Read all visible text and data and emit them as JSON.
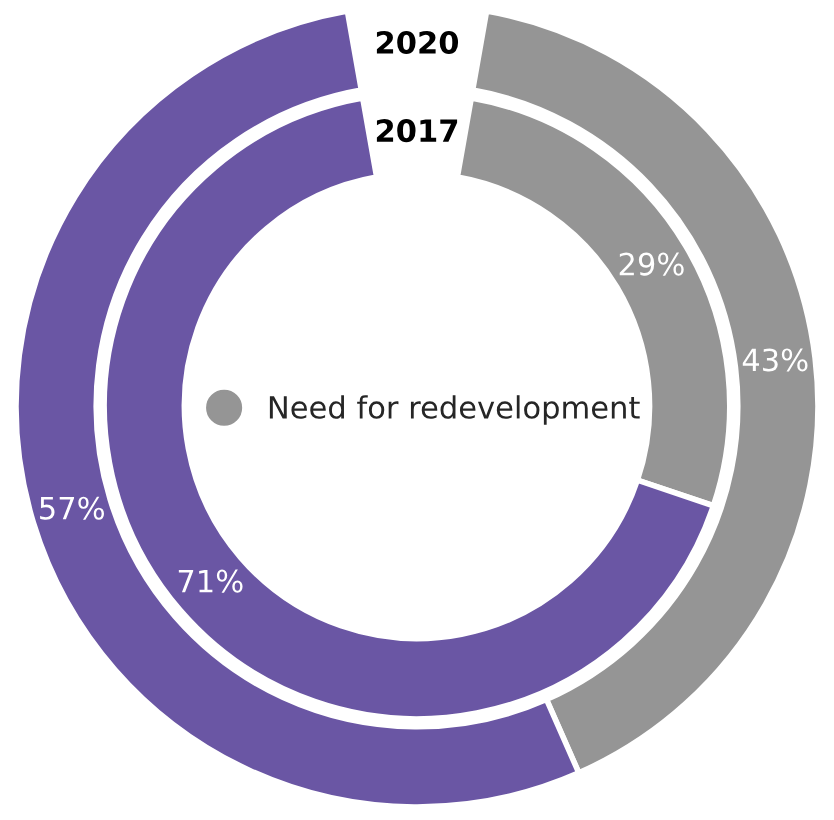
{
  "chart_data": {
    "type": "donut",
    "categories": [
      "Need for redevelopment",
      null
    ],
    "colors": [
      "#959595",
      "#6a56a4"
    ],
    "series": [
      {
        "name": "2020",
        "values": [
          43,
          57
        ],
        "value_labels": [
          "43%",
          "57%"
        ]
      },
      {
        "name": "2017",
        "values": [
          29,
          71
        ],
        "value_labels": [
          "29%",
          "71%"
        ]
      }
    ],
    "legend": "center"
  }
}
